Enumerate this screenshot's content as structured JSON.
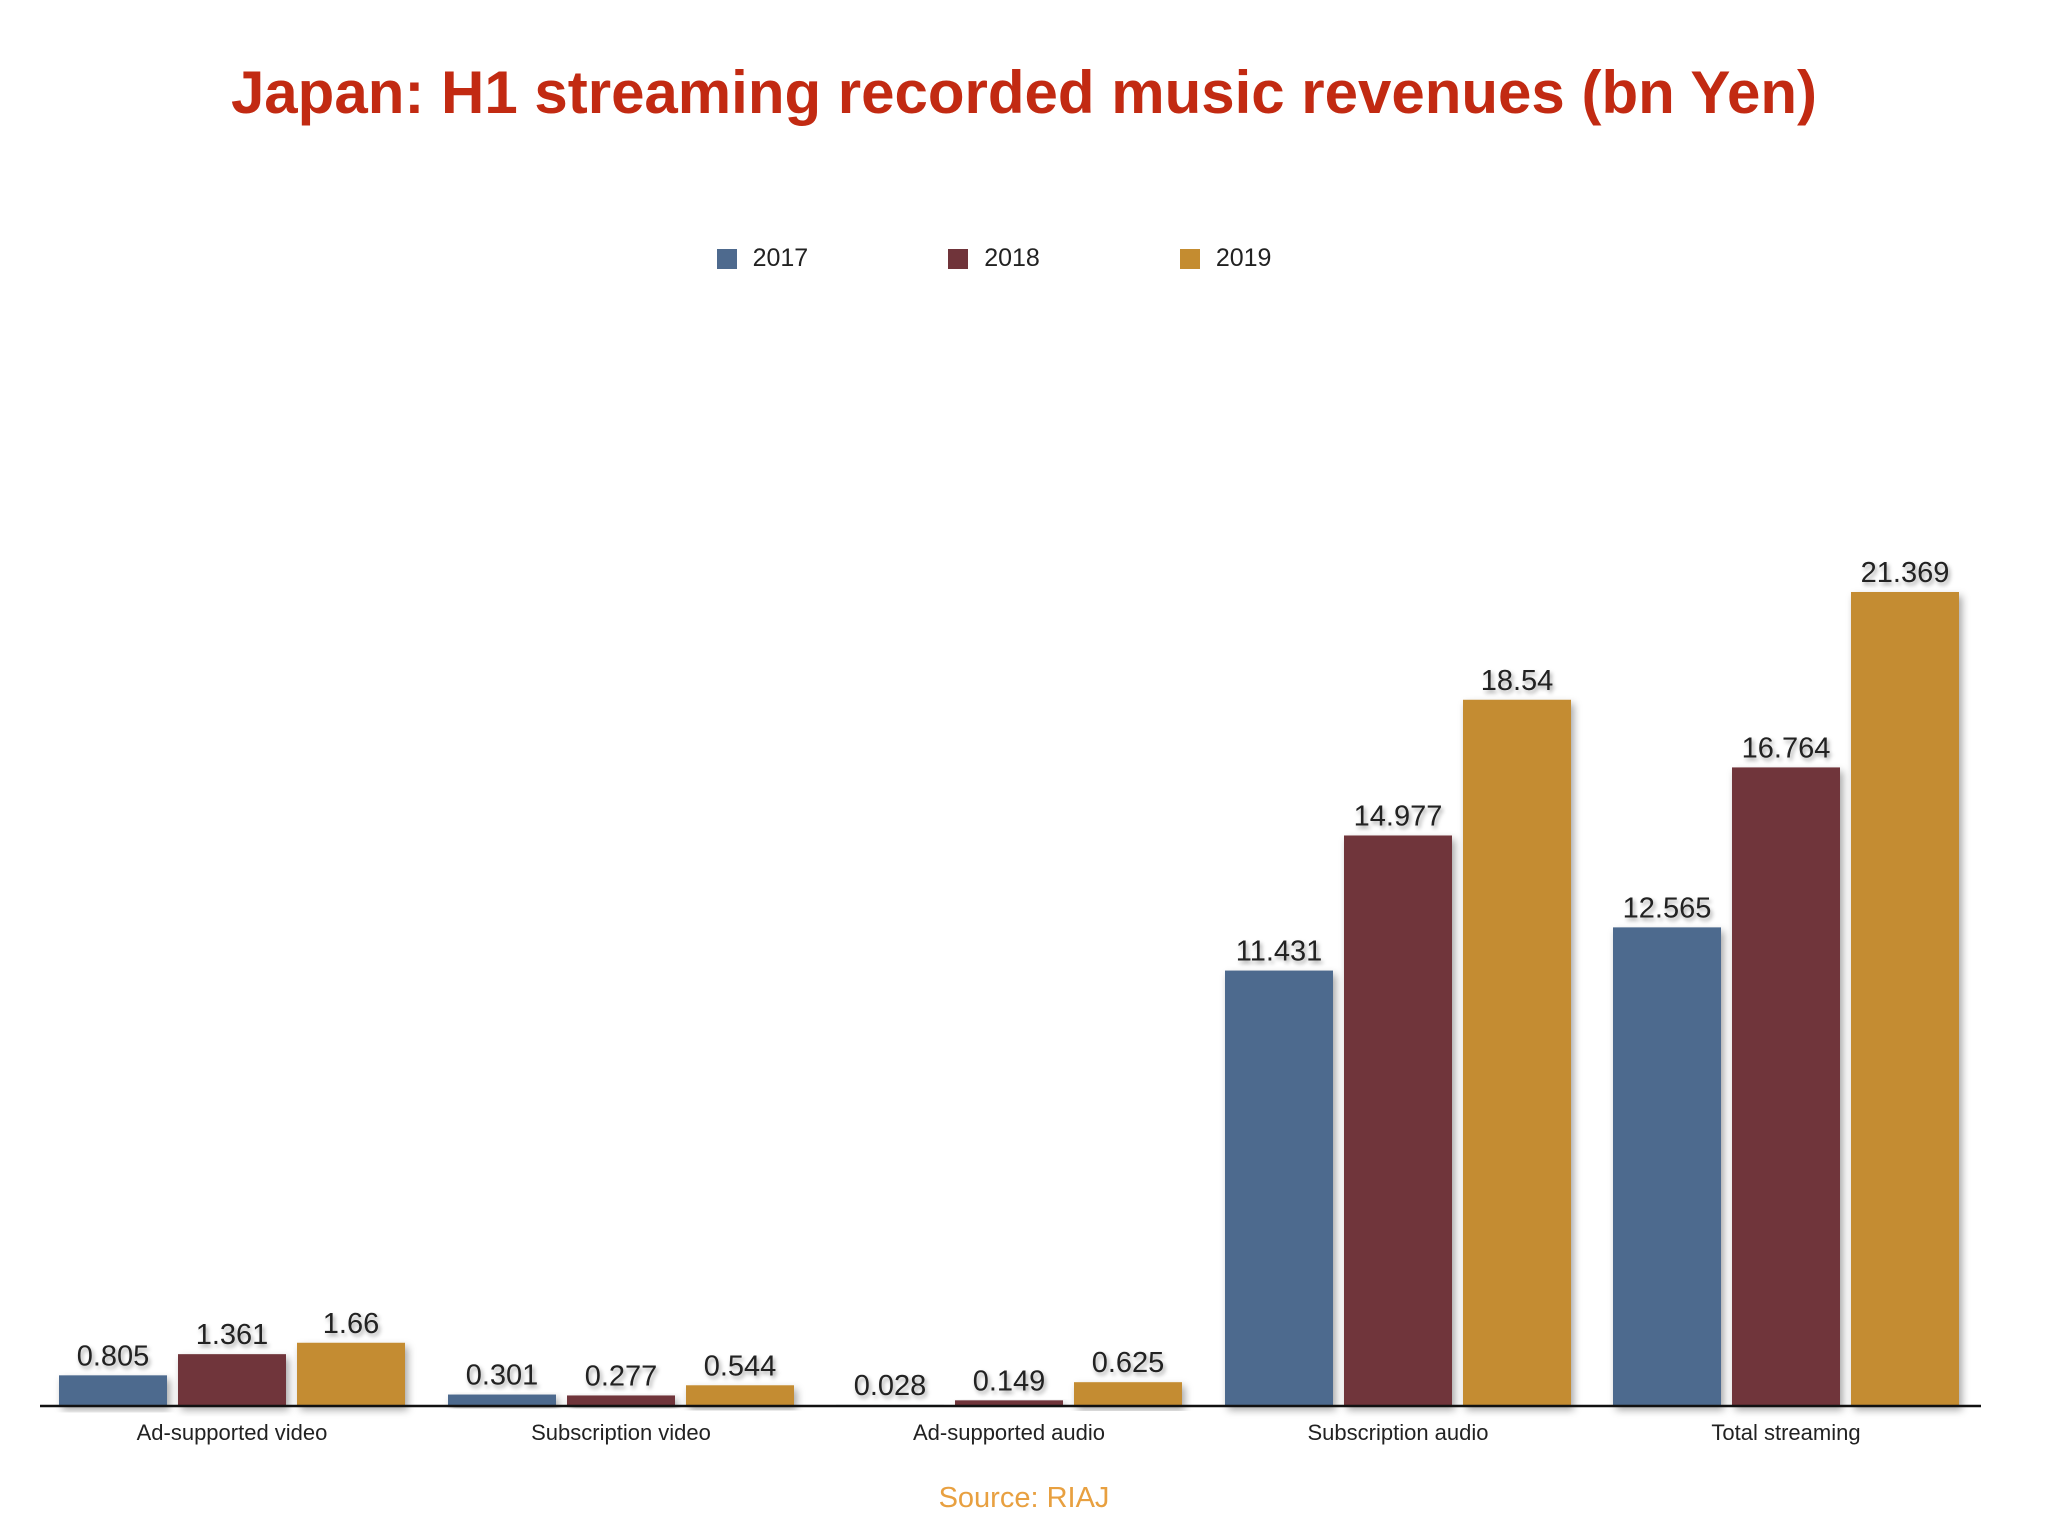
{
  "chart_data": {
    "type": "bar",
    "title": "Japan: H1 streaming recorded music revenues (bn Yen)",
    "categories": [
      "Ad-supported video",
      "Subscription video",
      "Ad-supported audio",
      "Subscription audio",
      "Total streaming"
    ],
    "series": [
      {
        "name": "2017",
        "color": "#4e6a8e",
        "values": [
          0.805,
          0.301,
          0.028,
          11.431,
          12.565
        ],
        "labels": [
          "0.805",
          "0.301",
          "0.028",
          "11.431",
          "12.565"
        ]
      },
      {
        "name": "2018",
        "color": "#70343a",
        "values": [
          1.361,
          0.277,
          0.149,
          14.977,
          16.764
        ],
        "labels": [
          "1.361",
          "0.277",
          "0.149",
          "14.977",
          "16.764"
        ]
      },
      {
        "name": "2019",
        "color": "#c48c30",
        "values": [
          1.66,
          0.544,
          0.625,
          18.54,
          21.369
        ],
        "labels": [
          "1.66",
          "0.544",
          "0.625",
          "18.54",
          "21.369"
        ]
      }
    ],
    "xlabel": "",
    "ylabel": "",
    "ylim": [
      0,
      21.369
    ],
    "grid": false,
    "legend": "top-center",
    "source": "Source: RIAJ"
  }
}
